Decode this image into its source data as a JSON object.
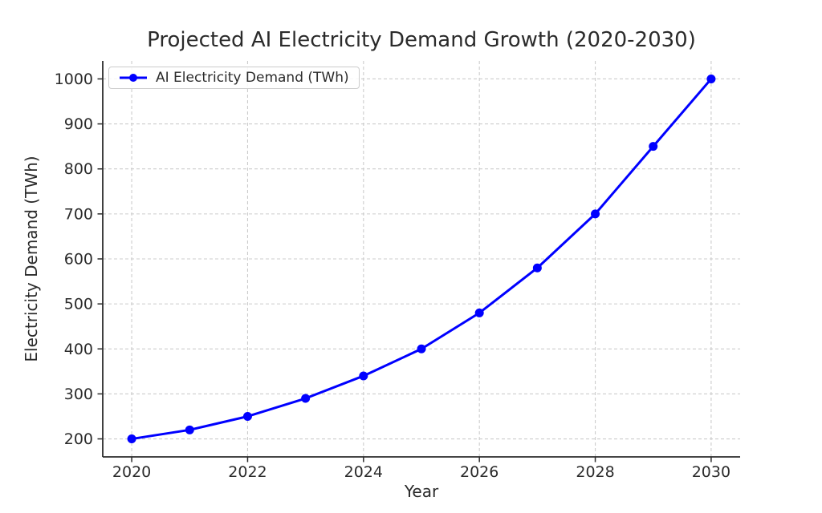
{
  "chart_data": {
    "type": "line",
    "title": "Projected AI Electricity Demand Growth (2020-2030)",
    "xlabel": "Year",
    "ylabel": "Electricity Demand (TWh)",
    "x": [
      2020,
      2021,
      2022,
      2023,
      2024,
      2025,
      2026,
      2027,
      2028,
      2029,
      2030
    ],
    "series": [
      {
        "name": "AI Electricity Demand (TWh)",
        "values": [
          200,
          220,
          250,
          290,
          340,
          400,
          480,
          580,
          700,
          850,
          1000
        ],
        "color": "#0000ff",
        "marker": "circle",
        "line_width": 3
      }
    ],
    "xlim": [
      2019.5,
      2030.5
    ],
    "ylim": [
      160,
      1040
    ],
    "xticks": [
      2020,
      2022,
      2024,
      2026,
      2028,
      2030
    ],
    "yticks": [
      200,
      300,
      400,
      500,
      600,
      700,
      800,
      900,
      1000
    ],
    "grid": true,
    "grid_color": "#cccccc",
    "spine_color": "#2b2b2b",
    "text_color": "#2b2b2b",
    "legend_position": "upper-left"
  }
}
